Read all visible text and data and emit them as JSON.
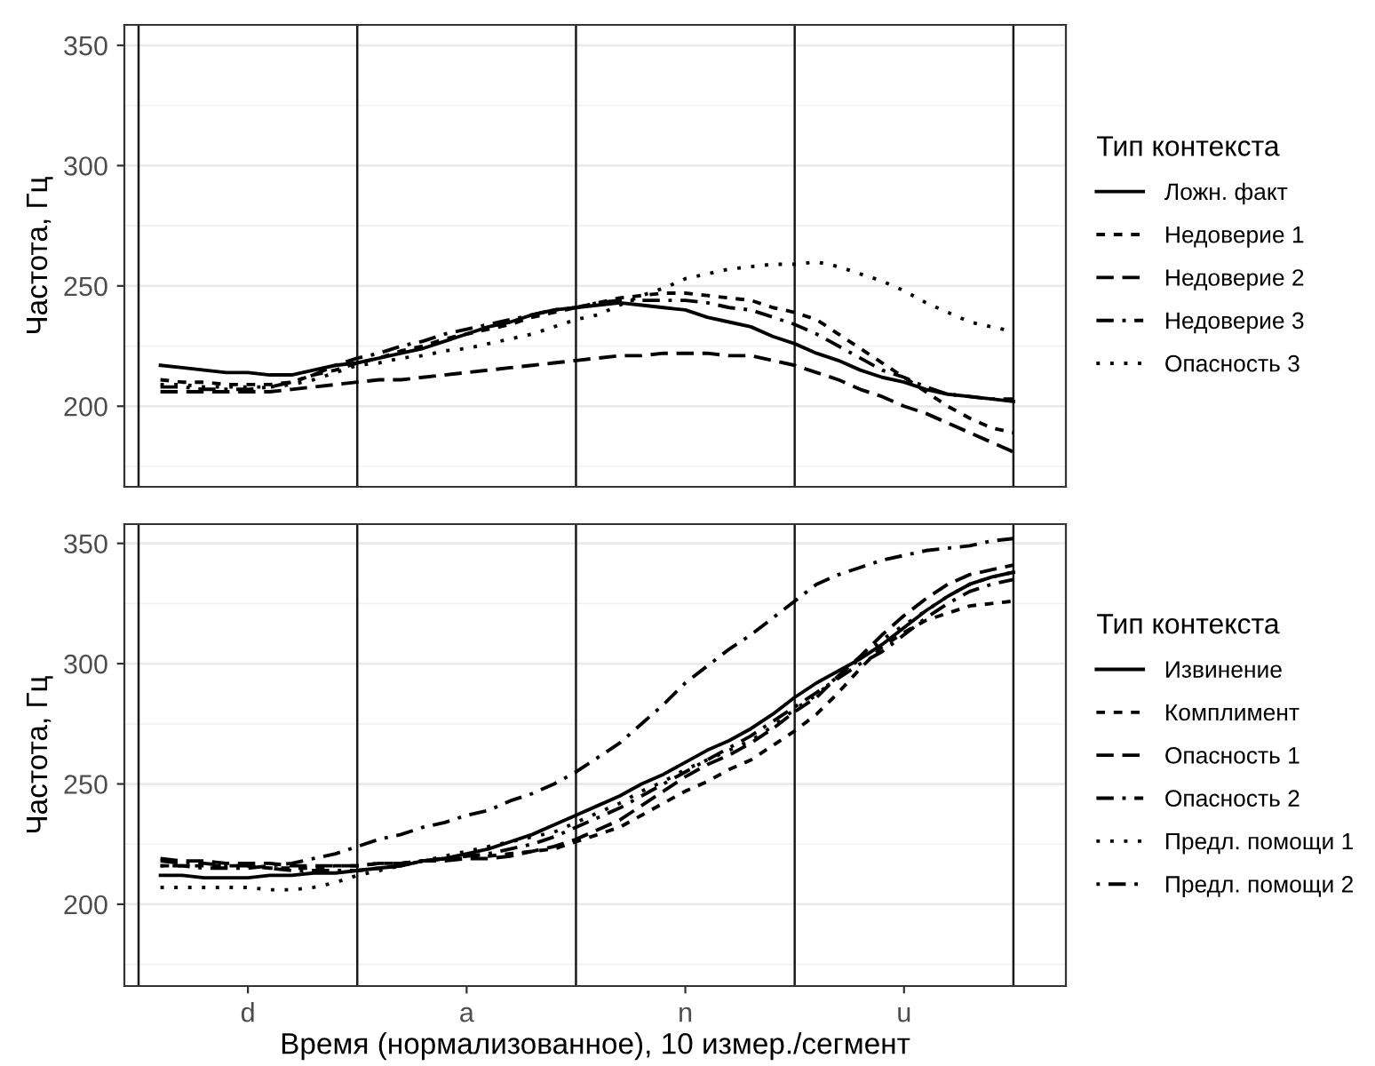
{
  "chart_data": [
    {
      "type": "line",
      "ylabel": "Частота, Гц",
      "legend_title": "Тип контекста",
      "legend": "right",
      "grid": true,
      "tick_labels": "y",
      "categories": [
        null,
        null,
        null,
        null,
        null,
        null,
        null,
        null,
        null,
        null,
        null,
        null,
        null,
        null,
        null,
        null,
        null,
        null,
        null,
        null,
        null,
        null,
        null,
        null,
        null,
        null,
        null,
        null,
        null,
        null,
        null,
        null,
        null,
        null,
        null,
        null,
        null,
        null,
        null,
        null
      ],
      "ylim": [
        166.5,
        358.5
      ],
      "yticks": [
        {
          "value": 175,
          "label": null
        },
        200,
        {
          "value": 225,
          "label": null
        },
        250,
        {
          "value": 275,
          "label": null
        },
        300,
        {
          "value": 325,
          "label": null
        },
        350
      ],
      "series": [
        {
          "name": "Ложн. факт",
          "color": "#000000",
          "line_style": "solid",
          "values": [
            217,
            216,
            215,
            214,
            214,
            213,
            213,
            215,
            217,
            218,
            220,
            222,
            224,
            227,
            230,
            233,
            235,
            238,
            240,
            241,
            242,
            243,
            242,
            241,
            240,
            237,
            235,
            233,
            229,
            226,
            222,
            219,
            215,
            212,
            210,
            207,
            205,
            204,
            203,
            202
          ]
        },
        {
          "name": "Недоверие 1",
          "color": "#000000",
          "line_style": "dashed",
          "values": [
            211,
            210,
            210,
            209,
            209,
            209,
            210,
            213,
            215,
            218,
            220,
            223,
            225,
            228,
            230,
            232,
            234,
            237,
            239,
            241,
            243,
            245,
            246,
            247,
            247,
            246,
            245,
            244,
            241,
            239,
            236,
            230,
            224,
            218,
            212,
            206,
            200,
            195,
            191,
            189
          ]
        },
        {
          "name": "Недоверие 2",
          "color": "#000000",
          "line_style": "longdash",
          "values": [
            206,
            206,
            206,
            206,
            206,
            206,
            207,
            208,
            209,
            210,
            211,
            211,
            212,
            213,
            214,
            215,
            216,
            217,
            218,
            219,
            220,
            221,
            221,
            222,
            222,
            222,
            221,
            221,
            219,
            217,
            214,
            211,
            207,
            204,
            200,
            197,
            193,
            189,
            185,
            181
          ]
        },
        {
          "name": "Недоверие 3",
          "color": "#000000",
          "line_style": "dotdash",
          "values": [
            208,
            208,
            207,
            207,
            207,
            208,
            210,
            213,
            217,
            220,
            222,
            225,
            227,
            230,
            232,
            234,
            236,
            238,
            240,
            241,
            243,
            244,
            244,
            244,
            244,
            243,
            241,
            240,
            237,
            234,
            230,
            225,
            220,
            215,
            212,
            208,
            205,
            204,
            203,
            203
          ]
        },
        {
          "name": "Опасность 3",
          "color": "#000000",
          "line_style": "dotted",
          "values": [
            209,
            209,
            208,
            208,
            208,
            208,
            209,
            211,
            214,
            217,
            218,
            220,
            221,
            223,
            224,
            226,
            228,
            230,
            233,
            236,
            238,
            242,
            246,
            249,
            253,
            255,
            257,
            258,
            259,
            259,
            260,
            258,
            255,
            252,
            248,
            243,
            239,
            235,
            233,
            231
          ]
        }
      ]
    },
    {
      "type": "line",
      "ylabel": "Частота, Гц",
      "xlabel": "Время (нормализованное), 10 измер./сегмент",
      "legend_title": "Тип контекста",
      "legend": "right",
      "grid": true,
      "categories": [
        null,
        null,
        null,
        null,
        "d",
        null,
        null,
        null,
        null,
        null,
        null,
        null,
        null,
        null,
        "a",
        null,
        null,
        null,
        null,
        null,
        null,
        null,
        null,
        null,
        "n",
        null,
        null,
        null,
        null,
        null,
        null,
        null,
        null,
        null,
        "u",
        null,
        null,
        null,
        null,
        null
      ],
      "ylim": [
        166,
        358
      ],
      "yticks": [
        {
          "value": 175,
          "label": null
        },
        200,
        {
          "value": 225,
          "label": null
        },
        250,
        {
          "value": 275,
          "label": null
        },
        300,
        {
          "value": 325,
          "label": null
        },
        350
      ],
      "series": [
        {
          "name": "Извинение",
          "color": "#000000",
          "line_style": "solid",
          "values": [
            212,
            212,
            211,
            211,
            211,
            212,
            212,
            213,
            213,
            214,
            215,
            216,
            218,
            219,
            221,
            223,
            226,
            229,
            233,
            237,
            241,
            245,
            250,
            254,
            259,
            264,
            268,
            273,
            279,
            286,
            292,
            297,
            302,
            308,
            315,
            322,
            328,
            333,
            336,
            338
          ]
        },
        {
          "name": "Комплимент",
          "color": "#000000",
          "line_style": "dashed",
          "values": [
            216,
            216,
            216,
            216,
            216,
            215,
            215,
            215,
            216,
            216,
            217,
            217,
            218,
            219,
            219,
            220,
            221,
            222,
            223,
            226,
            229,
            232,
            237,
            242,
            247,
            251,
            256,
            260,
            266,
            272,
            279,
            288,
            298,
            307,
            313,
            318,
            321,
            324,
            325,
            326
          ]
        },
        {
          "name": "Опасность 1",
          "color": "#000000",
          "line_style": "longdash",
          "values": [
            219,
            218,
            218,
            217,
            217,
            217,
            216,
            216,
            216,
            216,
            217,
            217,
            218,
            218,
            219,
            219,
            220,
            222,
            224,
            227,
            231,
            235,
            241,
            247,
            253,
            258,
            262,
            267,
            273,
            280,
            286,
            295,
            303,
            312,
            320,
            327,
            333,
            337,
            339,
            341
          ]
        },
        {
          "name": "Опасность 2",
          "color": "#000000",
          "line_style": "dotdash",
          "values": [
            218,
            217,
            217,
            216,
            216,
            215,
            214,
            214,
            214,
            214,
            215,
            216,
            218,
            219,
            220,
            221,
            223,
            225,
            228,
            232,
            236,
            240,
            245,
            250,
            255,
            260,
            265,
            270,
            276,
            282,
            288,
            294,
            300,
            305,
            312,
            319,
            325,
            330,
            333,
            335
          ]
        },
        {
          "name": "Предл. помощи 1",
          "color": "#000000",
          "line_style": "dotted",
          "values": [
            207,
            207,
            207,
            207,
            207,
            206,
            206,
            207,
            209,
            212,
            214,
            216,
            218,
            220,
            222,
            224,
            226,
            228,
            230,
            234,
            238,
            242,
            247,
            251,
            256,
            260,
            264,
            268,
            274,
            281,
            287,
            295,
            302,
            310,
            316,
            322,
            328,
            333,
            336,
            338
          ]
        },
        {
          "name": "Предл. помощи 2",
          "color": "#000000",
          "line_style": "twodash",
          "values": [
            216,
            216,
            215,
            215,
            215,
            216,
            217,
            219,
            221,
            224,
            227,
            229,
            232,
            234,
            237,
            239,
            243,
            246,
            250,
            255,
            261,
            267,
            275,
            283,
            292,
            299,
            306,
            312,
            319,
            326,
            333,
            337,
            340,
            343,
            345,
            347,
            348,
            349,
            351,
            352
          ]
        }
      ]
    }
  ]
}
